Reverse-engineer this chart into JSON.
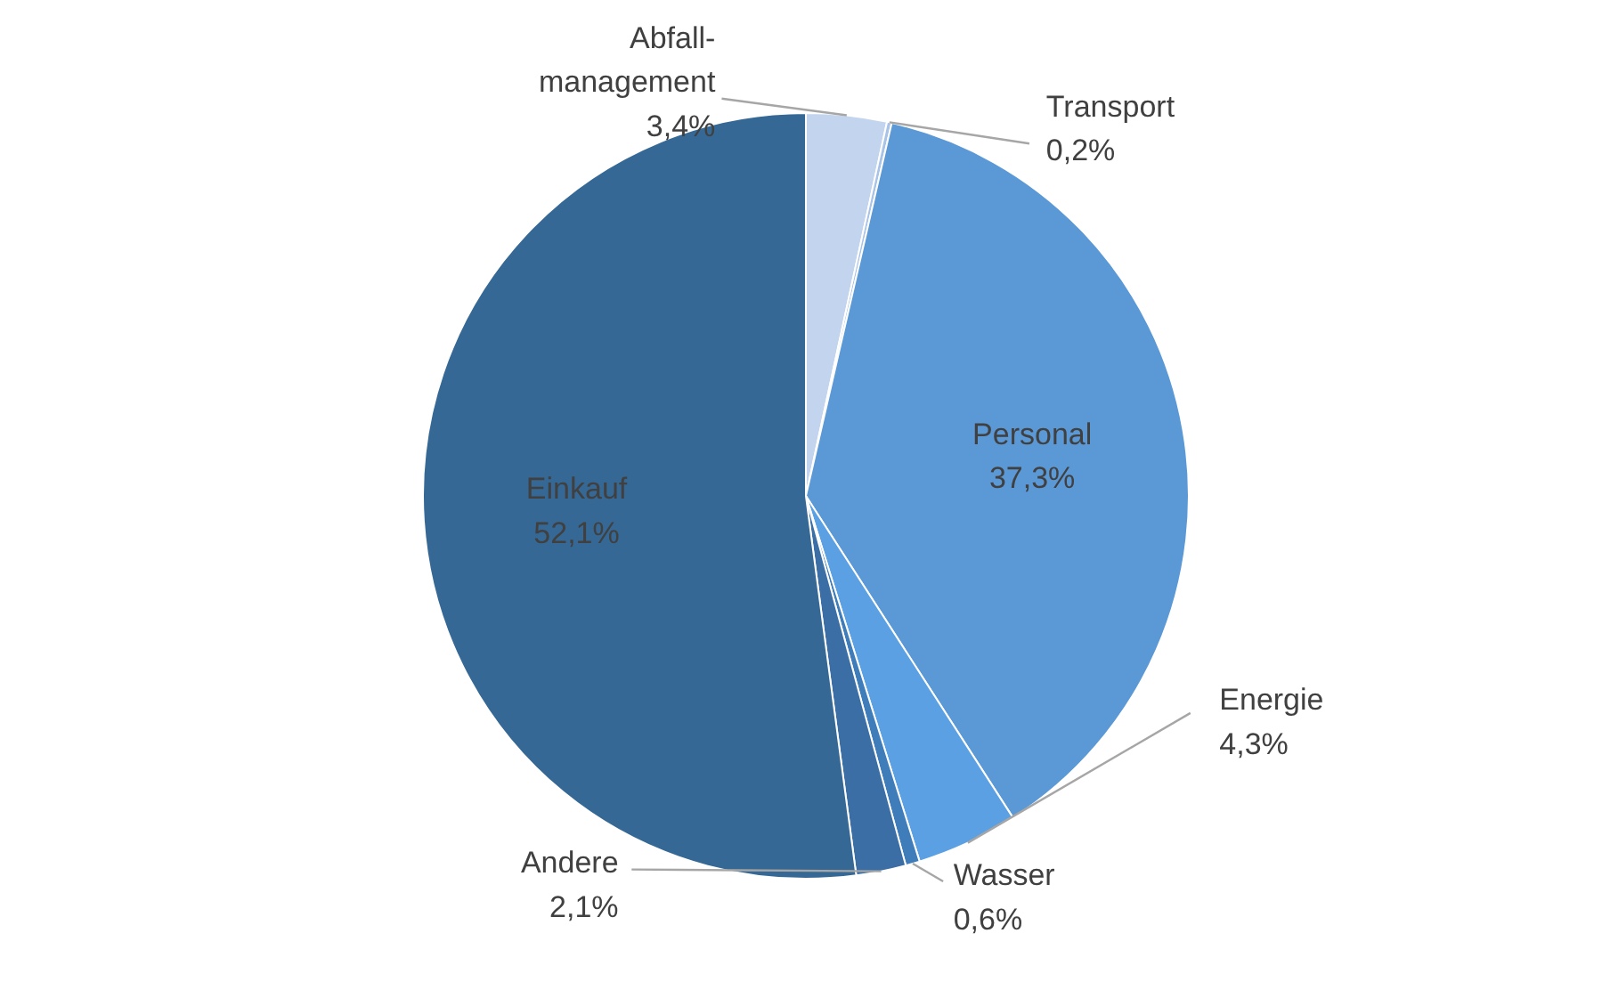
{
  "chart_data": {
    "type": "pie",
    "categories": [
      "Abfall-\nmanagement",
      "Transport",
      "Personal",
      "Energie",
      "Wasser",
      "Andere",
      "Einkauf"
    ],
    "values": [
      3.4,
      0.2,
      37.3,
      4.3,
      0.6,
      2.1,
      52.1
    ],
    "value_labels": [
      "3,4%",
      "0,2%",
      "37,3%",
      "4,3%",
      "0,6%",
      "2,1%",
      "52,1%"
    ],
    "colors": [
      "#c3d5ee",
      "#a8c3e8",
      "#5a98d6",
      "#5aa0e2",
      "#3f7cba",
      "#3a6ea5",
      "#356895"
    ]
  }
}
